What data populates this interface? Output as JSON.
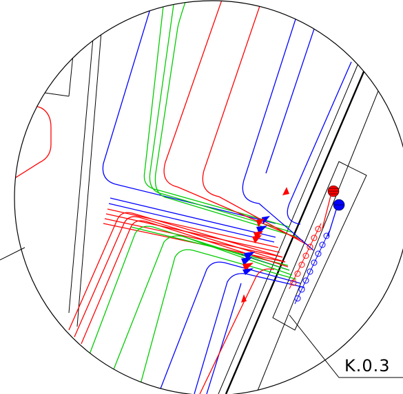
{
  "drawing": {
    "callout_label": "K.0.3",
    "colors": {
      "supply": "#ff0000",
      "return": "#0000ff",
      "green": "#00cc00",
      "outline": "#000000",
      "background": "#ffffff"
    }
  }
}
